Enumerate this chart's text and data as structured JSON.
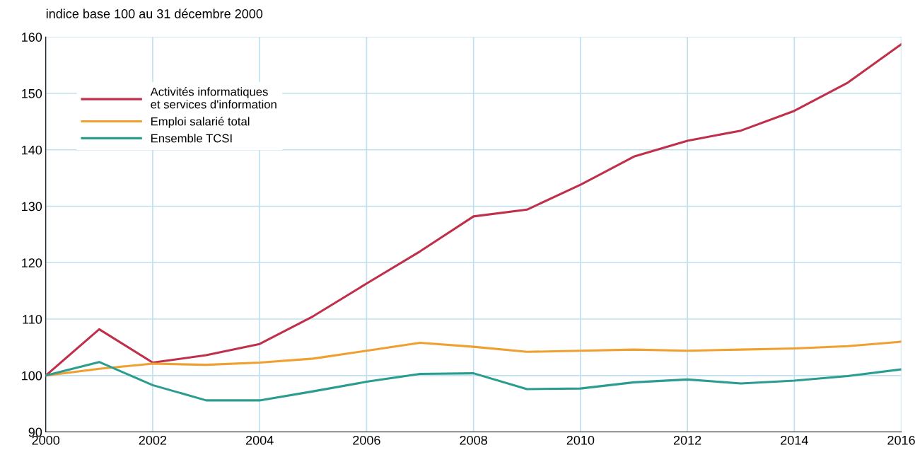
{
  "chart_data": {
    "type": "line",
    "ylabel": "indice base 100 au 31 décembre 2000",
    "x": [
      2000,
      2001,
      2002,
      2003,
      2004,
      2005,
      2006,
      2007,
      2008,
      2009,
      2010,
      2011,
      2012,
      2013,
      2014,
      2015,
      2016
    ],
    "series": [
      {
        "name": "Activités informatiques\net services d'information",
        "color": "#c0304a",
        "values": [
          100,
          108.2,
          102.3,
          103.6,
          105.6,
          110.5,
          116.3,
          122,
          128.2,
          129.4,
          133.8,
          138.8,
          141.6,
          143.4,
          146.9,
          151.9,
          158.7
        ]
      },
      {
        "name": "Emploi salarié total",
        "color": "#f0a030",
        "values": [
          100,
          101.2,
          102.1,
          101.9,
          102.3,
          103,
          104.4,
          105.8,
          105.1,
          104.2,
          104.4,
          104.6,
          104.4,
          104.6,
          104.8,
          105.2,
          106
        ]
      },
      {
        "name": "Ensemble TCSI",
        "color": "#2a9d8f",
        "values": [
          100,
          102.4,
          98.3,
          95.6,
          95.6,
          97.2,
          98.9,
          100.3,
          100.4,
          97.6,
          97.7,
          98.8,
          99.3,
          98.6,
          99.1,
          99.9,
          101.1
        ]
      }
    ],
    "xlim": [
      2000,
      2016
    ],
    "xticks": [
      2000,
      2002,
      2004,
      2006,
      2008,
      2010,
      2012,
      2014,
      2016
    ],
    "ylim": [
      90,
      160
    ],
    "yticks": [
      90,
      100,
      110,
      120,
      130,
      140,
      150,
      160
    ],
    "grid": true,
    "legend": "top left",
    "marker": "none",
    "line_style": "solid"
  }
}
